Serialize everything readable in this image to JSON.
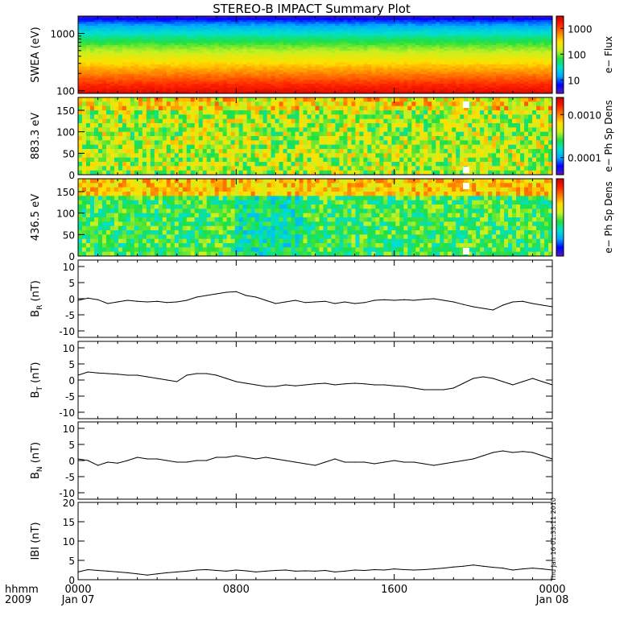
{
  "title": "STEREO-B IMPACT Summary Plot",
  "timestamp": "Thu Jan 16 01:33:11 2010",
  "x_axis": {
    "labels_left": [
      "hhmm",
      "2009"
    ],
    "ticks": [
      {
        "t": 0,
        "line1": "0000",
        "line2": "Jan 07"
      },
      {
        "t": 8,
        "line1": "0800",
        "line2": ""
      },
      {
        "t": 16,
        "line1": "1600",
        "line2": ""
      },
      {
        "t": 24,
        "line1": "0000",
        "line2": "Jan 08"
      }
    ]
  },
  "colors": {
    "spectrogram_scale": [
      "#5a1bbf",
      "#0000ff",
      "#00a8ff",
      "#00e0d0",
      "#20e040",
      "#c8f020",
      "#ffe000",
      "#ff8000",
      "#ff2000",
      "#c80000"
    ]
  },
  "chart_data": [
    {
      "type": "heatmap",
      "ylabel": "SWEA (eV)",
      "yscale": "log",
      "ylim": [
        90,
        2000
      ],
      "yticks": [
        "1000",
        "100"
      ],
      "colorbar_label": "e− Flux",
      "colorbar_scale": "log",
      "colorbar_ticks": [
        "1000",
        "100",
        "10"
      ],
      "colorbar_range": [
        3,
        3000
      ],
      "xlim": [
        0,
        24
      ],
      "description_bands": [
        {
          "energy_eV": 1800,
          "flux": 8
        },
        {
          "energy_eV": 1300,
          "flux": 15
        },
        {
          "energy_eV": 900,
          "flux": 60
        },
        {
          "energy_eV": 600,
          "flux": 250
        },
        {
          "energy_eV": 400,
          "flux": 600
        },
        {
          "energy_eV": 250,
          "flux": 1200
        },
        {
          "energy_eV": 150,
          "flux": 2000
        },
        {
          "energy_eV": 100,
          "flux": 2500
        }
      ]
    },
    {
      "type": "heatmap",
      "ylabel": "883.3 eV",
      "ylim": [
        0,
        180
      ],
      "yticks": [
        "150",
        "100",
        "50",
        "0"
      ],
      "colorbar_label": "e− Ph Sp Dens",
      "colorbar_scale": "log",
      "colorbar_ticks": [
        "0.0010",
        "0.0001"
      ],
      "colorbar_range": [
        4e-05,
        0.0025
      ],
      "xlim": [
        0,
        24
      ]
    },
    {
      "type": "heatmap",
      "ylabel": "436.5 eV",
      "ylim": [
        0,
        180
      ],
      "yticks": [
        "150",
        "100",
        "50",
        "0"
      ],
      "colorbar_label": "e− Ph Sp Dens",
      "xlim": [
        0,
        24
      ]
    },
    {
      "type": "line",
      "ylabel": "B_R (nT)",
      "label_main": "B",
      "label_sub": "R",
      "label_unit": "(nT)",
      "ylim": [
        -12,
        12
      ],
      "yticks": [
        10,
        5,
        0,
        -5,
        -10
      ],
      "xlim": [
        0,
        24
      ],
      "x": [
        0,
        0.5,
        1,
        1.5,
        2,
        2.5,
        3,
        3.5,
        4,
        4.5,
        5,
        5.5,
        6,
        6.5,
        7,
        7.5,
        8,
        8.5,
        9,
        9.5,
        10,
        10.5,
        11,
        11.5,
        12,
        12.5,
        13,
        13.5,
        14,
        14.5,
        15,
        15.5,
        16,
        16.5,
        17,
        17.5,
        18,
        18.5,
        19,
        19.5,
        20,
        20.5,
        21,
        21.5,
        22,
        22.5,
        23,
        23.5,
        24
      ],
      "values": [
        -0.5,
        0.2,
        -0.3,
        -1.5,
        -1.0,
        -0.5,
        -0.8,
        -1.0,
        -0.8,
        -1.2,
        -1.0,
        -0.5,
        0.5,
        1.0,
        1.5,
        2.0,
        2.2,
        1.0,
        0.5,
        -0.5,
        -1.5,
        -1.0,
        -0.5,
        -1.2,
        -1.0,
        -0.8,
        -1.5,
        -1.0,
        -1.5,
        -1.2,
        -0.5,
        -0.3,
        -0.5,
        -0.3,
        -0.5,
        -0.2,
        0.0,
        -0.5,
        -1.0,
        -1.8,
        -2.5,
        -3.0,
        -3.5,
        -2.0,
        -1.0,
        -0.8,
        -1.5,
        -2.0,
        -2.5
      ]
    },
    {
      "type": "line",
      "ylabel": "B_T (nT)",
      "label_main": "B",
      "label_sub": "T",
      "label_unit": "(nT)",
      "ylim": [
        -12,
        12
      ],
      "yticks": [
        10,
        5,
        0,
        -5,
        -10
      ],
      "xlim": [
        0,
        24
      ],
      "x": [
        0,
        0.5,
        1,
        1.5,
        2,
        2.5,
        3,
        3.5,
        4,
        4.5,
        5,
        5.5,
        6,
        6.5,
        7,
        7.5,
        8,
        8.5,
        9,
        9.5,
        10,
        10.5,
        11,
        11.5,
        12,
        12.5,
        13,
        13.5,
        14,
        14.5,
        15,
        15.5,
        16,
        16.5,
        17,
        17.5,
        18,
        18.5,
        19,
        19.5,
        20,
        20.5,
        21,
        21.5,
        22,
        22.5,
        23,
        23.5,
        24
      ],
      "values": [
        1.5,
        2.5,
        2.2,
        2.0,
        1.8,
        1.5,
        1.5,
        1.0,
        0.5,
        0.0,
        -0.5,
        1.5,
        2.0,
        2.0,
        1.5,
        0.5,
        -0.5,
        -1.0,
        -1.5,
        -2.0,
        -2.0,
        -1.5,
        -1.8,
        -1.5,
        -1.2,
        -1.0,
        -1.5,
        -1.2,
        -1.0,
        -1.2,
        -1.5,
        -1.5,
        -1.8,
        -2.0,
        -2.5,
        -3.0,
        -3.0,
        -3.0,
        -2.5,
        -1.0,
        0.5,
        1.0,
        0.5,
        -0.5,
        -1.5,
        -0.5,
        0.5,
        -0.5,
        -1.5
      ]
    },
    {
      "type": "line",
      "ylabel": "B_N (nT)",
      "label_main": "B",
      "label_sub": "N",
      "label_unit": "(nT)",
      "ylim": [
        -12,
        12
      ],
      "yticks": [
        10,
        5,
        0,
        -5,
        -10
      ],
      "xlim": [
        0,
        24
      ],
      "x": [
        0,
        0.5,
        1,
        1.5,
        2,
        2.5,
        3,
        3.5,
        4,
        4.5,
        5,
        5.5,
        6,
        6.5,
        7,
        7.5,
        8,
        8.5,
        9,
        9.5,
        10,
        10.5,
        11,
        11.5,
        12,
        12.5,
        13,
        13.5,
        14,
        14.5,
        15,
        15.5,
        16,
        16.5,
        17,
        17.5,
        18,
        18.5,
        19,
        19.5,
        20,
        20.5,
        21,
        21.5,
        22,
        22.5,
        23,
        23.5,
        24
      ],
      "values": [
        0.5,
        0.0,
        -1.5,
        -0.5,
        -0.8,
        0.0,
        1.0,
        0.5,
        0.5,
        0.0,
        -0.5,
        -0.5,
        0.0,
        0.0,
        1.0,
        1.0,
        1.5,
        1.0,
        0.5,
        1.0,
        0.5,
        0.0,
        -0.5,
        -1.0,
        -1.5,
        -0.5,
        0.5,
        -0.5,
        -0.5,
        -0.5,
        -1.0,
        -0.5,
        0.0,
        -0.5,
        -0.5,
        -1.0,
        -1.5,
        -1.0,
        -0.5,
        0.0,
        0.5,
        1.5,
        2.5,
        3.0,
        2.5,
        2.8,
        2.5,
        1.5,
        0.5
      ]
    },
    {
      "type": "line",
      "ylabel": "|B| (nT)",
      "label_main": "IBI",
      "label_sub": "",
      "label_unit": "(nT)",
      "ylim": [
        0,
        20
      ],
      "yticks": [
        20,
        15,
        10,
        5,
        0
      ],
      "xlim": [
        0,
        24
      ],
      "x": [
        0,
        0.5,
        1,
        1.5,
        2,
        2.5,
        3,
        3.5,
        4,
        4.5,
        5,
        5.5,
        6,
        6.5,
        7,
        7.5,
        8,
        8.5,
        9,
        9.5,
        10,
        10.5,
        11,
        11.5,
        12,
        12.5,
        13,
        13.5,
        14,
        14.5,
        15,
        15.5,
        16,
        16.5,
        17,
        17.5,
        18,
        18.5,
        19,
        19.5,
        20,
        20.5,
        21,
        21.5,
        22,
        22.5,
        23,
        23.5,
        24
      ],
      "values": [
        2.0,
        2.6,
        2.4,
        2.2,
        2.0,
        1.8,
        1.5,
        1.2,
        1.5,
        1.8,
        2.0,
        2.2,
        2.5,
        2.6,
        2.4,
        2.2,
        2.5,
        2.3,
        2.0,
        2.2,
        2.4,
        2.5,
        2.2,
        2.3,
        2.2,
        2.4,
        2.0,
        2.2,
        2.5,
        2.4,
        2.6,
        2.5,
        2.8,
        2.6,
        2.5,
        2.6,
        2.8,
        3.0,
        3.3,
        3.5,
        3.8,
        3.5,
        3.2,
        3.0,
        2.5,
        2.8,
        3.0,
        2.8,
        2.5
      ]
    }
  ]
}
